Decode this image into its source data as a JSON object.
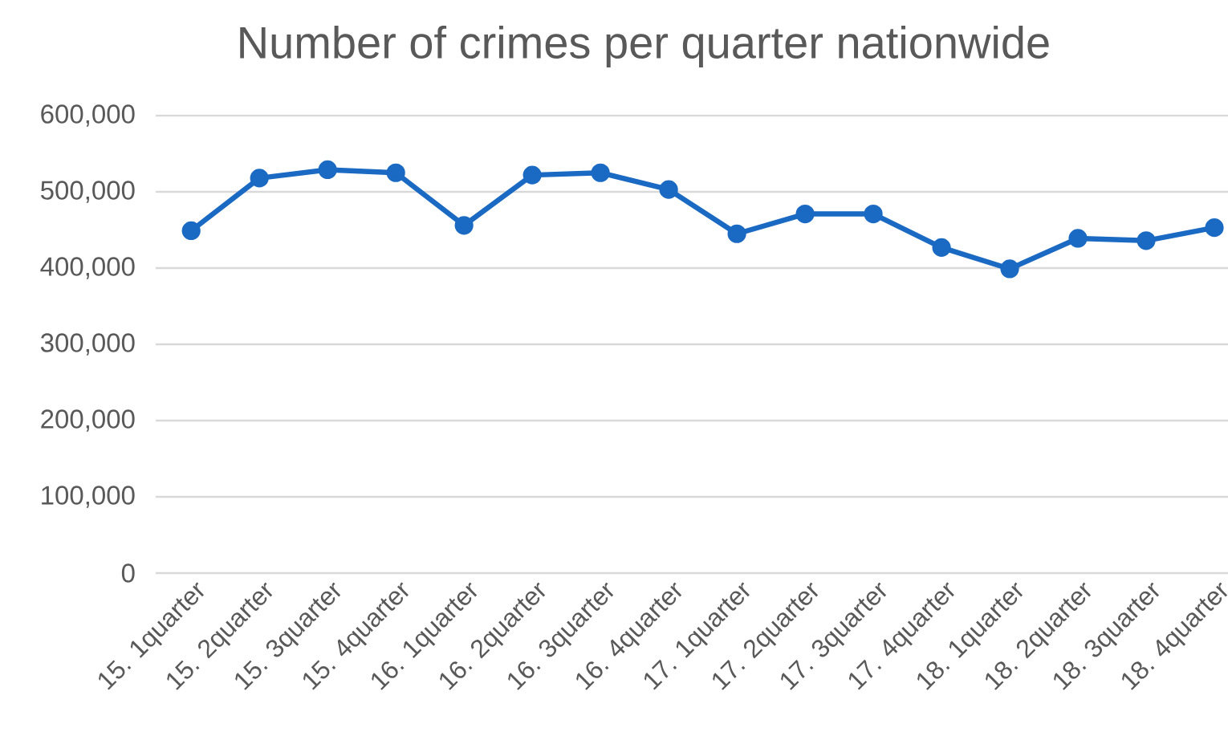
{
  "chart_data": {
    "type": "line",
    "title": "Number of crimes per quarter nationwide",
    "categories": [
      "15. 1quarter",
      "15. 2quarter",
      "15. 3quarter",
      "15. 4quarter",
      "16. 1quarter",
      "16. 2quarter",
      "16. 3quarter",
      "16. 4quarter",
      "17. 1quarter",
      "17. 2quarter",
      "17. 3quarter",
      "17. 4quarter",
      "18. 1quarter",
      "18. 2quarter",
      "18. 3quarter",
      "18. 4quarter"
    ],
    "series": [
      {
        "color": "#1a6ac4",
        "values": [
          449000,
          518000,
          529000,
          525000,
          456000,
          522000,
          525000,
          503000,
          445000,
          471000,
          471000,
          427000,
          399000,
          439000,
          436000,
          453000
        ]
      }
    ],
    "ylim": [
      0,
      600000
    ],
    "yticks": [
      0,
      {
        "value": 100000,
        "label": "100,000"
      },
      {
        "value": 200000,
        "label": "200,000"
      },
      {
        "value": 300000,
        "label": "300,000"
      },
      {
        "value": 400000,
        "label": "400,000"
      },
      {
        "value": 500000,
        "label": "500,000"
      },
      {
        "value": 600000,
        "label": "600,000"
      }
    ],
    "grid": "y",
    "marker": "circle",
    "line_style": "solid"
  }
}
